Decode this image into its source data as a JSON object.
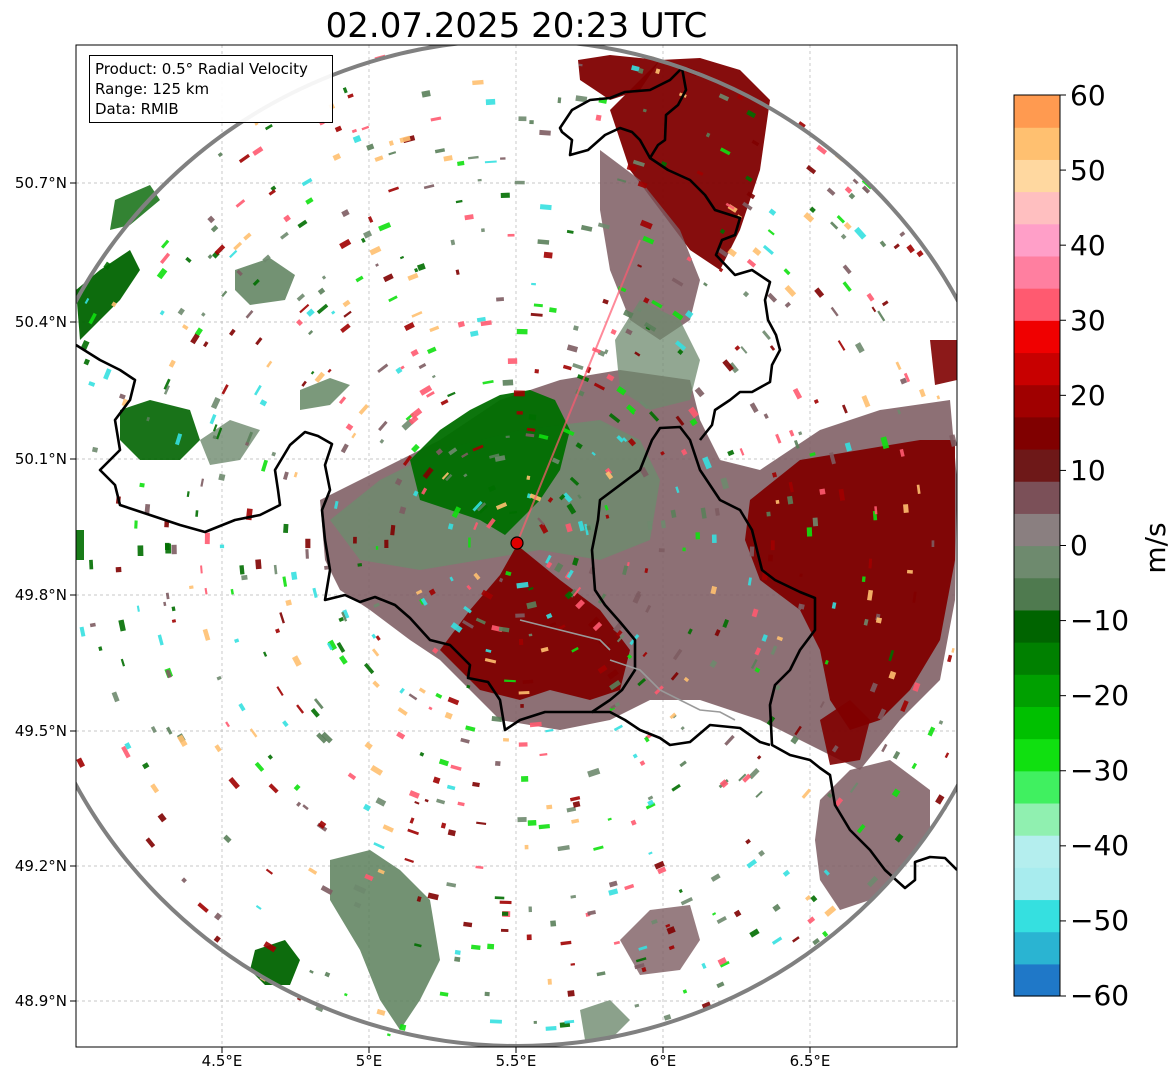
{
  "title": "02.07.2025 20:23 UTC",
  "info": {
    "product": "Product: 0.5° Radial Velocity",
    "range": "Range: 125 km",
    "data": "Data: RMIB"
  },
  "lat_labels": [
    "50.7°N",
    "50.4°N",
    "50.1°N",
    "49.8°N",
    "49.5°N",
    "49.2°N",
    "48.9°N"
  ],
  "lon_labels": [
    "4.5°E",
    "5°E",
    "5.5°E",
    "6°E",
    "6.5°E"
  ],
  "colorbar": {
    "label": "m/s",
    "min": -60,
    "max": 60,
    "ticks": [
      "60",
      "50",
      "40",
      "30",
      "20",
      "10",
      "0",
      "−10",
      "−20",
      "−30",
      "−40",
      "−50",
      "−60"
    ],
    "colors": [
      "#1f78c8",
      "#2ab4d2",
      "#35e0e0",
      "#a8ecee",
      "#b4eeee",
      "#90f0b0",
      "#40f060",
      "#10e010",
      "#00c000",
      "#00a000",
      "#008000",
      "#006400",
      "#4f7a4f",
      "#6e8a6e",
      "#8a7f80",
      "#7b5058",
      "#6e1818",
      "#800000",
      "#a00000",
      "#c80000",
      "#f00000",
      "#ff5a70",
      "#ff7fa0",
      "#ff9fc8",
      "#ffbfc0",
      "#ffd8a0",
      "#ffc070",
      "#ff9a50"
    ]
  },
  "map": {
    "radar_site": {
      "lon": 5.505,
      "lat": 49.914
    },
    "extent": {
      "lon": [
        4.0,
        7.0
      ],
      "lat": [
        48.8,
        51.0
      ]
    },
    "colors": {
      "approaching": "#006e00",
      "approaching_light": "#5a7f5a",
      "receding": "#800000",
      "near_zero": "#7d5c62",
      "radar_marker": "#e00000",
      "range_ring": "#808080",
      "borders": "#000000"
    }
  }
}
